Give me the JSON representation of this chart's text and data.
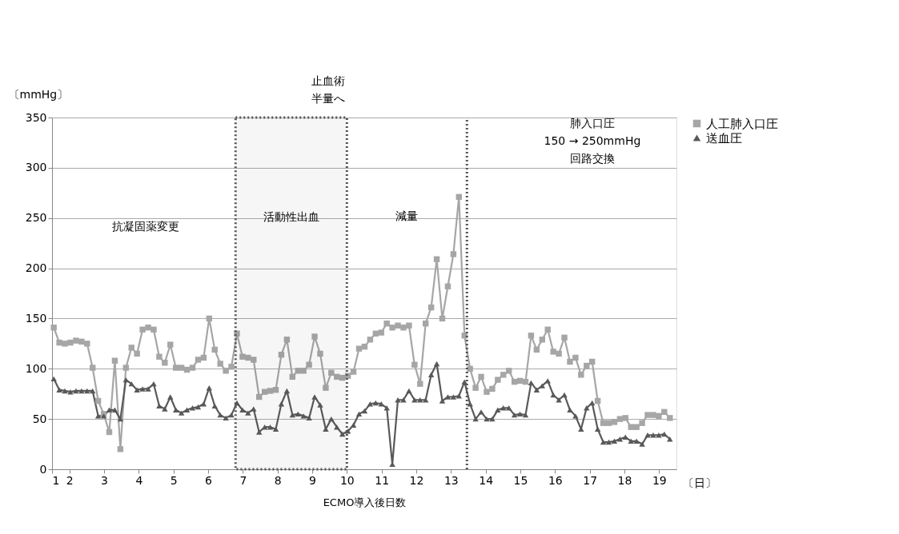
{
  "chart_data": {
    "type": "line",
    "xlabel": "ECMO導入後日数",
    "ylabel": "〔mmHg〕",
    "x": [
      1.55,
      1.71,
      1.87,
      2.03,
      2.19,
      2.35,
      2.51,
      2.67,
      2.83,
      2.99,
      3.15,
      3.31,
      3.47,
      3.63,
      3.79,
      3.95,
      4.11,
      4.27,
      4.43,
      4.59,
      4.75,
      4.91,
      5.07,
      5.23,
      5.39,
      5.55,
      5.71,
      5.87,
      6.03,
      6.19,
      6.35,
      6.51,
      6.67,
      6.83,
      6.99,
      7.15,
      7.31,
      7.47,
      7.63,
      7.79,
      7.95,
      8.11,
      8.27,
      8.43,
      8.59,
      8.75,
      8.91,
      9.07,
      9.23,
      9.39,
      9.55,
      9.71,
      9.87,
      10.03,
      10.19,
      10.35,
      10.51,
      10.67,
      10.83,
      10.99,
      11.15,
      11.31,
      11.47,
      11.63,
      11.79,
      11.95,
      12.11,
      12.27,
      12.43,
      12.59,
      12.75,
      12.91,
      13.07,
      13.23,
      13.39,
      13.55,
      13.71,
      13.87,
      14.03,
      14.19,
      14.35,
      14.51,
      14.67,
      14.83,
      14.99,
      15.15,
      15.31,
      15.47,
      15.63,
      15.79,
      15.95,
      16.11,
      16.27,
      16.43,
      16.59,
      16.75,
      16.91,
      17.07,
      17.23,
      17.39,
      17.55,
      17.71,
      17.87,
      18.03,
      18.19,
      18.35,
      18.51,
      18.67,
      18.83,
      18.99,
      19.15,
      19.31
    ],
    "series": [
      {
        "name": "人工肺入口圧",
        "color": "#a6a6a6",
        "marker": "square",
        "values": [
          141,
          126,
          125,
          126,
          128,
          127,
          125,
          101,
          68,
          55,
          37,
          108,
          20,
          101,
          121,
          115,
          139,
          141,
          139,
          112,
          106,
          124,
          101,
          101,
          99,
          101,
          109,
          111,
          150,
          119,
          105,
          98,
          102,
          135,
          112,
          111,
          109,
          72,
          77,
          78,
          79,
          114,
          129,
          92,
          98,
          98,
          104,
          132,
          115,
          81,
          96,
          92,
          91,
          93,
          97,
          120,
          122,
          129,
          135,
          136,
          145,
          141,
          143,
          141,
          143,
          104,
          85,
          145,
          161,
          209,
          150,
          182,
          214,
          271,
          133,
          100,
          81,
          92,
          77,
          80,
          89,
          94,
          98,
          87,
          88,
          87,
          133,
          119,
          129,
          139,
          117,
          115,
          131,
          107,
          111,
          94,
          103,
          107,
          68,
          46,
          46,
          47,
          50,
          51,
          42,
          42,
          46,
          54,
          54,
          53,
          57,
          51
        ]
      },
      {
        "name": "送血圧",
        "color": "#595959",
        "marker": "triangle",
        "values": [
          90,
          79,
          78,
          77,
          78,
          78,
          78,
          78,
          53,
          53,
          59,
          59,
          50,
          89,
          85,
          79,
          80,
          80,
          85,
          63,
          60,
          72,
          59,
          56,
          59,
          61,
          62,
          65,
          81,
          63,
          54,
          51,
          54,
          66,
          59,
          56,
          60,
          37,
          42,
          42,
          40,
          65,
          78,
          54,
          55,
          53,
          51,
          72,
          64,
          40,
          50,
          42,
          35,
          38,
          44,
          55,
          58,
          65,
          66,
          65,
          61,
          5,
          69,
          69,
          78,
          69,
          69,
          69,
          94,
          105,
          68,
          72,
          72,
          73,
          87,
          65,
          50,
          57,
          50,
          50,
          59,
          61,
          61,
          54,
          55,
          54,
          86,
          79,
          83,
          88,
          74,
          69,
          74,
          59,
          53,
          40,
          61,
          66,
          40,
          27,
          27,
          28,
          30,
          32,
          28,
          28,
          25,
          34,
          34,
          34,
          35,
          30
        ]
      }
    ],
    "xlim": [
      1.5,
      19.5
    ],
    "xticks": [
      {
        "value": 1.5,
        "label": "1"
      },
      2,
      3,
      4,
      5,
      6,
      7,
      8,
      9,
      10,
      11,
      12,
      13,
      14,
      15,
      16,
      17,
      18,
      19
    ],
    "ylim": [
      0,
      350
    ],
    "yticks": [
      0,
      50,
      100,
      150,
      200,
      250,
      300,
      350
    ],
    "grid": "y",
    "legend": "right",
    "line_style": "solid",
    "bands": [
      {
        "axis": "x",
        "from": 6.79,
        "to": 10,
        "label": "活動性出血",
        "color": "#555555"
      }
    ],
    "ref_lines": [
      {
        "axis": "x",
        "value": 13.46,
        "color": "#555555",
        "line_style": "dotted"
      }
    ],
    "annotations": [
      "抗凝固薬変更",
      {
        "text": "止血術半量へ",
        "x": 10,
        "y": 340
      },
      "肺入口圧\n150 → 250mmHg\n回路交換",
      "減量",
      "〔日〕"
    ]
  }
}
